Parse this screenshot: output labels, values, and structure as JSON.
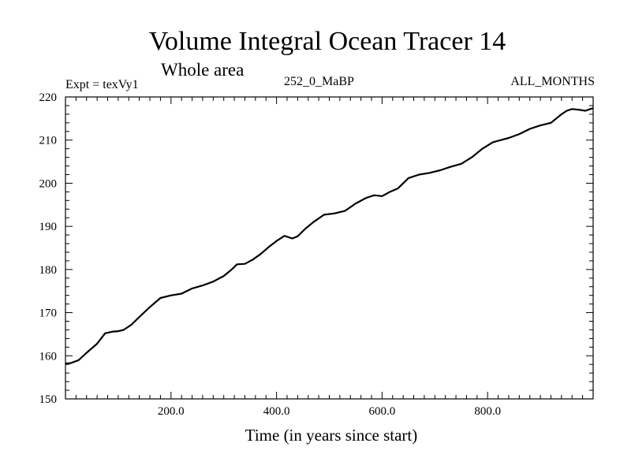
{
  "chart_data": {
    "type": "line",
    "title": "Volume Integral Ocean Tracer 14",
    "subtitle": "Whole area",
    "header_left": "Expt = texVy1",
    "header_center": "252_0_MaBP",
    "header_right": "ALL_MONTHS",
    "xlabel": "Time (in years since start)",
    "ylabel": "",
    "xlim": [
      0,
      1000
    ],
    "ylim": [
      150,
      220
    ],
    "grid": false,
    "x_ticks": [
      200,
      400,
      600,
      800
    ],
    "x_tick_labels": [
      "200.0",
      "400.0",
      "600.0",
      "800.0"
    ],
    "y_ticks": [
      150,
      160,
      170,
      180,
      190,
      200,
      210,
      220
    ],
    "y_tick_labels": [
      "150",
      "160",
      "170",
      "180",
      "190",
      "200",
      "210",
      "220"
    ],
    "series": [
      {
        "x": [
          0,
          10,
          25,
          40,
          60,
          75,
          90,
          100,
          110,
          125,
          140,
          160,
          180,
          200,
          220,
          240,
          260,
          280,
          300,
          315,
          325,
          340,
          355,
          370,
          385,
          400,
          415,
          430,
          440,
          455,
          470,
          490,
          510,
          530,
          550,
          570,
          585,
          600,
          615,
          630,
          650,
          670,
          690,
          710,
          730,
          750,
          770,
          790,
          810,
          825,
          840,
          860,
          880,
          900,
          920,
          940,
          950,
          960,
          975,
          985,
          1000
        ],
        "values": [
          158.2,
          158.3,
          159.0,
          160.7,
          162.8,
          165.2,
          165.6,
          165.7,
          166.0,
          167.2,
          169.0,
          171.3,
          173.4,
          174.0,
          174.4,
          175.6,
          176.3,
          177.2,
          178.5,
          180.0,
          181.2,
          181.3,
          182.3,
          183.6,
          185.2,
          186.6,
          187.8,
          187.2,
          187.7,
          189.5,
          191.0,
          192.7,
          193.0,
          193.6,
          195.3,
          196.6,
          197.2,
          197.0,
          198.0,
          198.8,
          201.2,
          202.0,
          202.4,
          203.0,
          203.8,
          204.5,
          206.0,
          208.0,
          209.5,
          210.0,
          210.5,
          211.4,
          212.6,
          213.4,
          214.0,
          216.0,
          216.8,
          217.2,
          217.0,
          216.8,
          217.4
        ]
      }
    ]
  }
}
